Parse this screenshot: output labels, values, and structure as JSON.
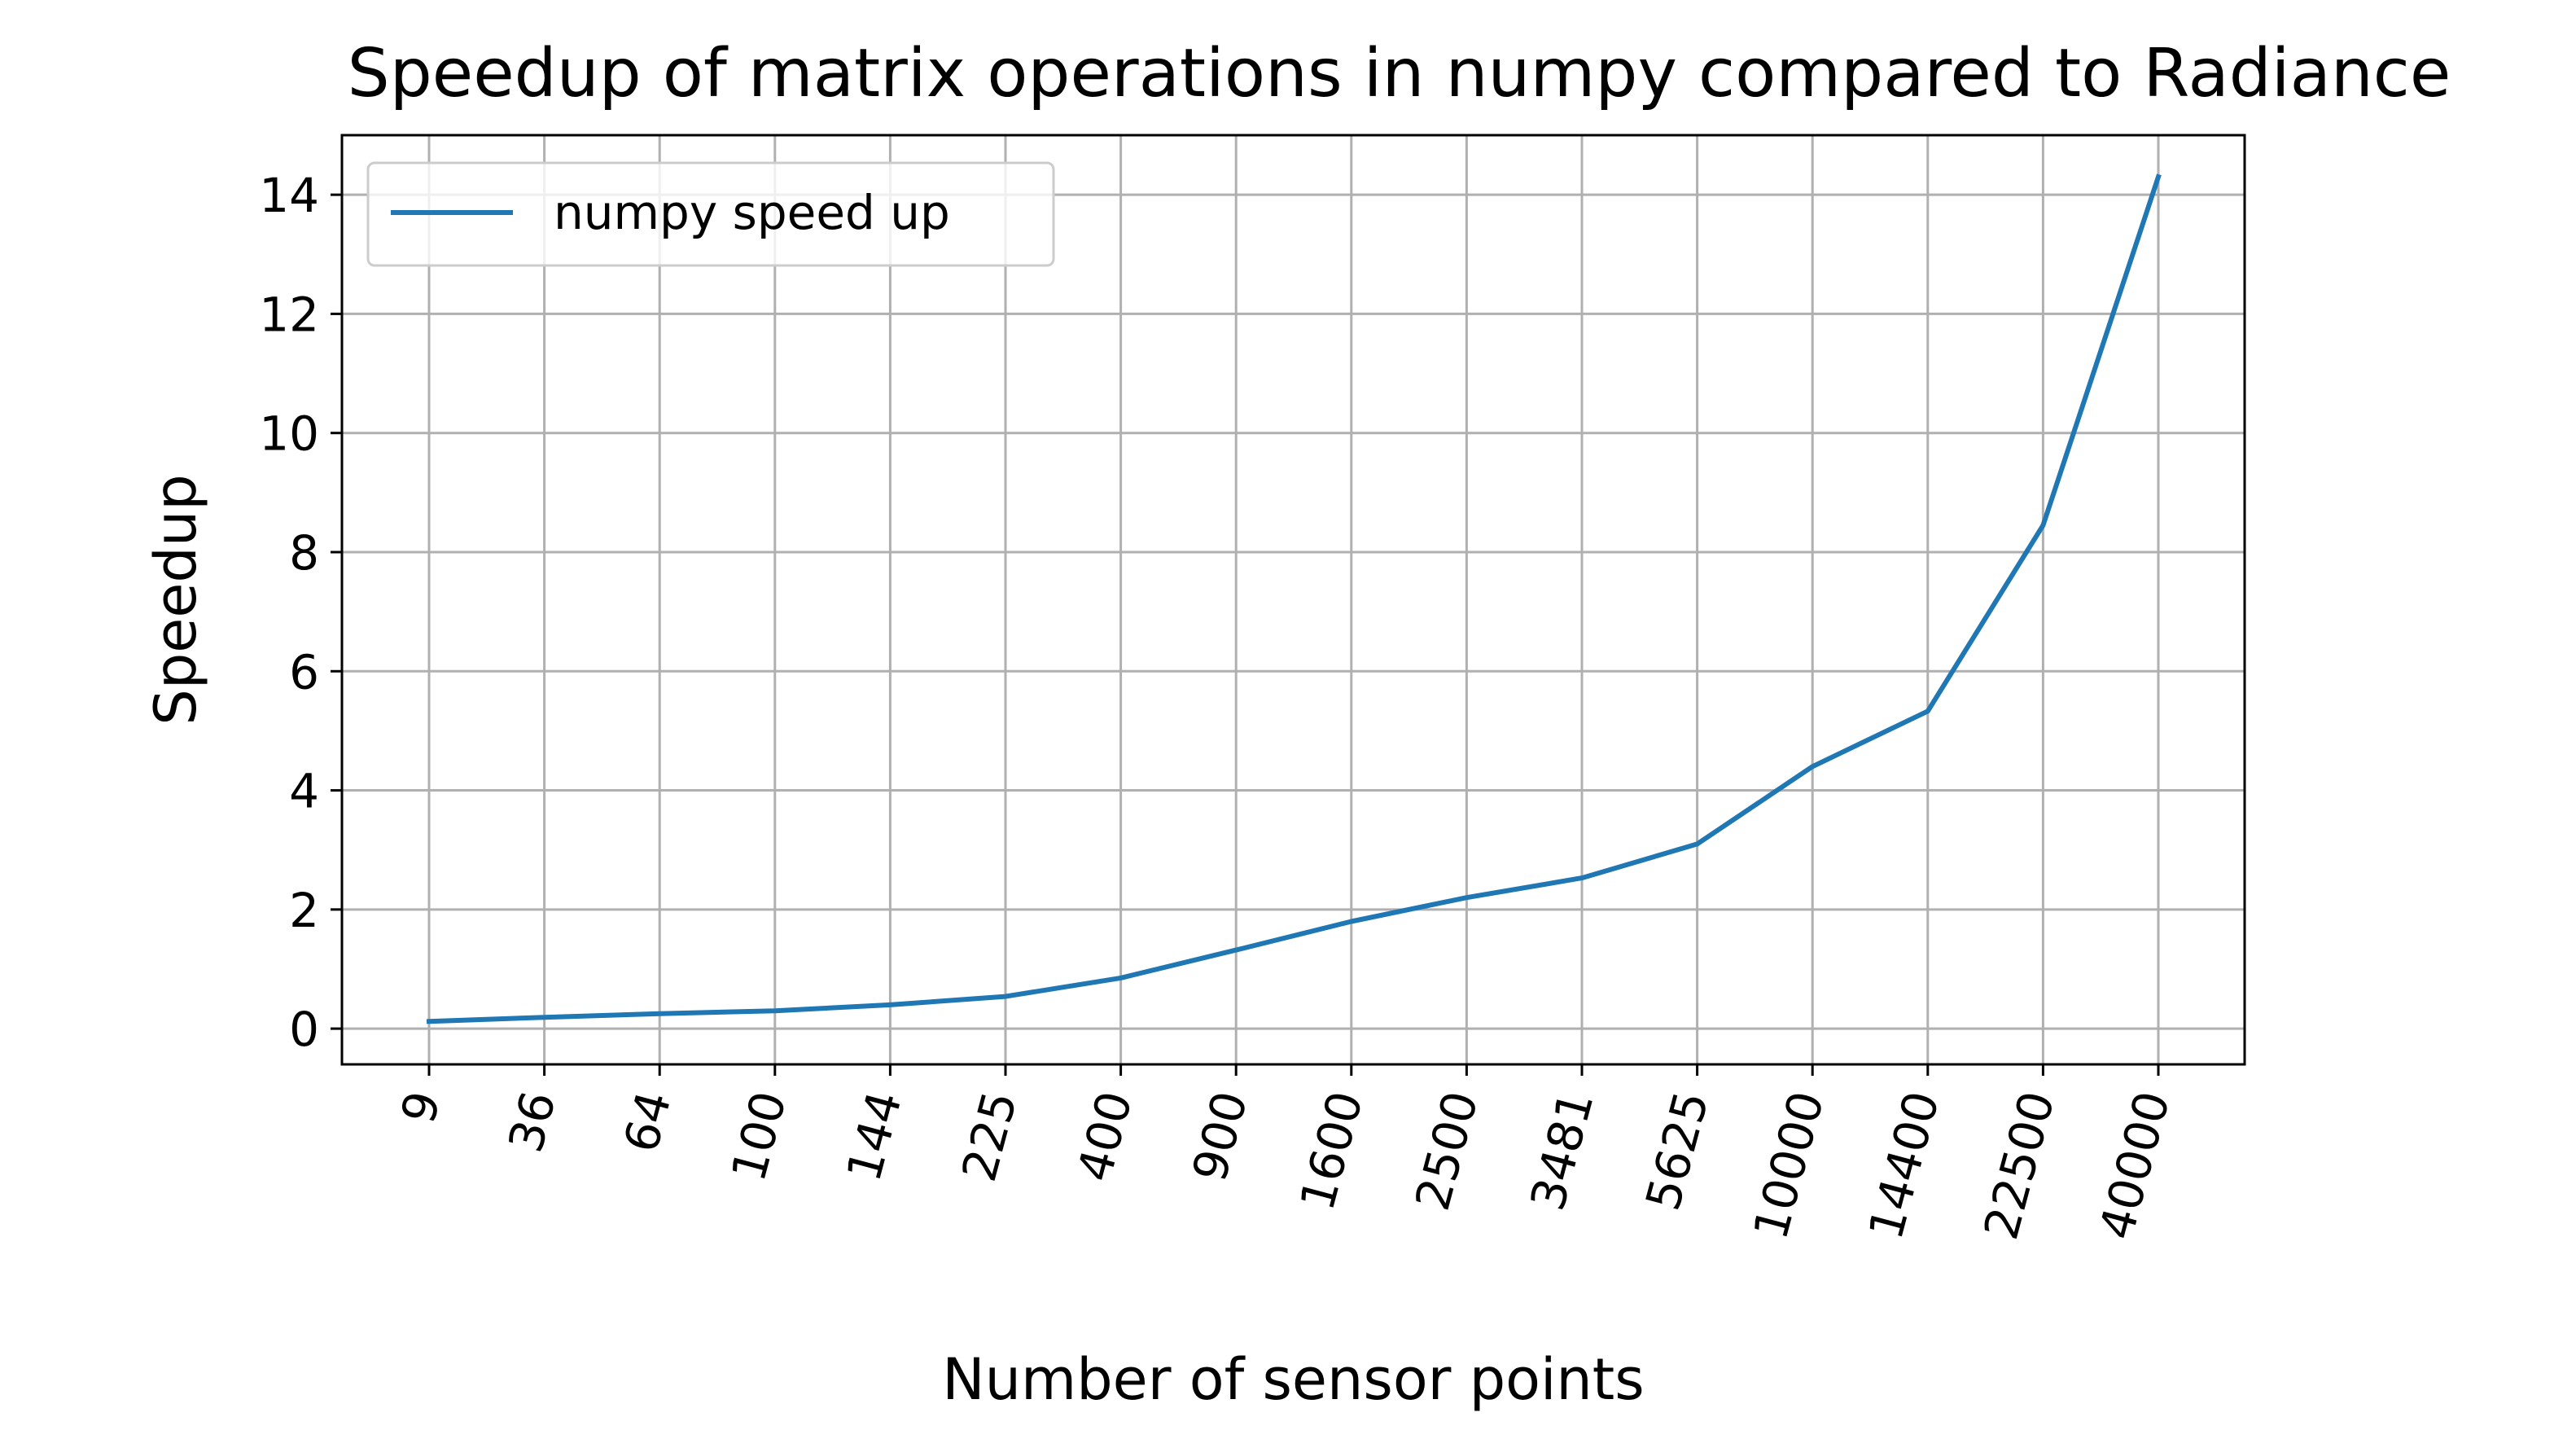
{
  "chart_data": {
    "type": "line",
    "title": "Speedup of matrix operations in numpy compared to Radiance",
    "xlabel": "Number of sensor points",
    "ylabel": "Speedup",
    "categories": [
      "9",
      "36",
      "64",
      "100",
      "144",
      "225",
      "400",
      "900",
      "1600",
      "2500",
      "3481",
      "5625",
      "10000",
      "14400",
      "22500",
      "40000"
    ],
    "series": [
      {
        "name": "numpy speed up",
        "color": "#1f77b4",
        "values": [
          0.12,
          0.19,
          0.25,
          0.3,
          0.4,
          0.54,
          0.85,
          1.32,
          1.8,
          2.2,
          2.53,
          3.1,
          4.4,
          5.33,
          8.45,
          14.3
        ]
      }
    ],
    "ylim": [
      -0.6,
      15.0
    ],
    "yticks": [
      0,
      2,
      4,
      6,
      8,
      10,
      12,
      14
    ],
    "x_tick_rotation": 75,
    "grid": true,
    "legend_position": "upper-left"
  }
}
